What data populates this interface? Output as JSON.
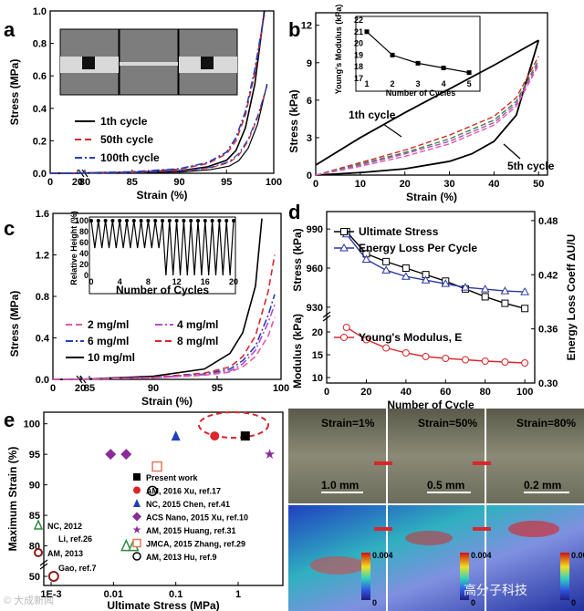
{
  "watermark_left": "© 大成新闻",
  "watermark_right": "高分子科技",
  "chart_data": [
    {
      "panel": "a",
      "type": "line",
      "xlabel": "Strain (%)",
      "ylabel": "Stress (MPa)",
      "xticks": [
        "0",
        "20",
        "80",
        "85",
        "90",
        "95",
        "100"
      ],
      "yticks": [
        "0.0",
        "0.2",
        "0.4",
        "0.6",
        "0.8",
        "1.0"
      ],
      "ylim": [
        0,
        1.0
      ],
      "series": [
        {
          "name": "1th cycle",
          "color": "#000000",
          "dash": "solid",
          "x": [
            0,
            20,
            80,
            85,
            90,
            93,
            95,
            96,
            97,
            98,
            99
          ],
          "y": [
            0,
            0,
            0.002,
            0.005,
            0.015,
            0.04,
            0.08,
            0.14,
            0.28,
            0.55,
            1.0
          ]
        },
        {
          "name": "50th cycle",
          "color": "#d9262b",
          "dash": "dashed",
          "x": [
            0,
            20,
            80,
            85,
            90,
            93,
            95,
            96,
            97,
            98,
            99
          ],
          "y": [
            0,
            0,
            0.003,
            0.008,
            0.025,
            0.06,
            0.12,
            0.2,
            0.36,
            0.62,
            0.98
          ]
        },
        {
          "name": "100th cycle",
          "color": "#1f3fbf",
          "dash": "dashdot",
          "x": [
            0,
            20,
            80,
            85,
            90,
            93,
            95,
            96,
            97,
            98,
            99
          ],
          "y": [
            0,
            0,
            0.003,
            0.009,
            0.028,
            0.066,
            0.13,
            0.22,
            0.38,
            0.64,
            0.98
          ]
        }
      ]
    },
    {
      "panel": "b",
      "type": "line",
      "xlabel": "Strain (%)",
      "ylabel": "Stress (kPa)",
      "xticks": [
        "0",
        "10",
        "20",
        "30",
        "40",
        "50"
      ],
      "yticks": [
        "0",
        "3",
        "6",
        "9",
        "12"
      ],
      "annotations": [
        "1th cycle",
        "5th cycle"
      ],
      "inset": {
        "type": "line",
        "xlabel": "Number of Cycles",
        "ylabel": "Young's Modulus (kPa)",
        "x": [
          1,
          2,
          3,
          4,
          5
        ],
        "y": [
          21.0,
          19.0,
          18.3,
          17.9,
          17.5
        ],
        "xticks": [
          "1",
          "2",
          "3",
          "4",
          "5"
        ],
        "yticks": [
          "17",
          "18",
          "19",
          "20",
          "21",
          "22"
        ]
      },
      "series": [
        {
          "name": "1th cycle loading",
          "color": "#000000",
          "x": [
            0,
            10,
            20,
            30,
            40,
            50
          ],
          "y": [
            0.8,
            3.0,
            5.0,
            6.9,
            8.8,
            10.8
          ]
        },
        {
          "name": "1th cycle unloading",
          "color": "#000000",
          "x": [
            50,
            45,
            40,
            35,
            30,
            20,
            10,
            0
          ],
          "y": [
            10.8,
            4.8,
            2.7,
            1.7,
            1.1,
            0.5,
            0.2,
            0
          ]
        },
        {
          "name": "cycle 2",
          "color": "#d9262b",
          "x": [
            0,
            10,
            20,
            30,
            40,
            45,
            50
          ],
          "y": [
            0,
            1.0,
            2.0,
            3.2,
            4.7,
            6.2,
            9.5
          ]
        },
        {
          "name": "cycle 3",
          "color": "#2e8b3d",
          "x": [
            0,
            10,
            20,
            30,
            40,
            45,
            50
          ],
          "y": [
            0,
            0.9,
            1.8,
            2.9,
            4.4,
            5.9,
            9.2
          ]
        },
        {
          "name": "cycle 4",
          "color": "#b44bc8",
          "x": [
            0,
            10,
            20,
            30,
            40,
            45,
            50
          ],
          "y": [
            0,
            0.8,
            1.7,
            2.7,
            4.2,
            5.7,
            9.0
          ]
        },
        {
          "name": "5th cycle",
          "color": "#e05aa8",
          "x": [
            0,
            10,
            20,
            30,
            40,
            45,
            50
          ],
          "y": [
            0,
            0.7,
            1.5,
            2.5,
            4.0,
            5.5,
            8.8
          ]
        }
      ]
    },
    {
      "panel": "c",
      "type": "line",
      "xlabel": "Strain (%)",
      "ylabel": "Stress (MPa)",
      "xticks": [
        "0",
        "20",
        "85",
        "90",
        "95",
        "100"
      ],
      "yticks": [
        "0.0",
        "0.4",
        "0.8",
        "1.2",
        "1.6"
      ],
      "legend": [
        "2 mg/ml",
        "4 mg/ml",
        "6 mg/ml",
        "8 mg/ml",
        "10 mg/ml"
      ],
      "inset": {
        "type": "line",
        "xlabel": "Number of Cycles",
        "ylabel": "Relative Height (%)",
        "xticks": [
          "0",
          "4",
          "8",
          "12",
          "16",
          "20"
        ],
        "yticks": [
          "0",
          "20",
          "40",
          "60",
          "80",
          "100"
        ],
        "cycles": 20,
        "drop_after": 10,
        "low_first": 50,
        "low_second": 0,
        "high": 100
      },
      "series": [
        {
          "name": "10 mg/ml",
          "color": "#000000",
          "x": [
            0,
            20,
            85,
            90,
            94,
            96,
            97,
            98,
            98.5
          ],
          "y": [
            0,
            0,
            0.005,
            0.03,
            0.1,
            0.25,
            0.45,
            0.9,
            1.55
          ]
        },
        {
          "name": "8 mg/ml",
          "color": "#d9262b",
          "x": [
            0,
            20,
            85,
            90,
            94,
            96,
            97,
            98,
            99,
            99.5
          ],
          "y": [
            0,
            0,
            0.004,
            0.02,
            0.06,
            0.12,
            0.22,
            0.42,
            0.85,
            1.2
          ]
        },
        {
          "name": "6 mg/ml",
          "color": "#1f3fbf",
          "x": [
            0,
            20,
            85,
            90,
            94,
            96,
            97,
            98,
            99,
            99.5
          ],
          "y": [
            0,
            0,
            0.004,
            0.018,
            0.05,
            0.1,
            0.18,
            0.32,
            0.62,
            0.82
          ]
        },
        {
          "name": "4 mg/ml",
          "color": "#b44bc8",
          "x": [
            0,
            20,
            85,
            90,
            94,
            96,
            97,
            98,
            99,
            99.5
          ],
          "y": [
            0,
            0,
            0.004,
            0.016,
            0.045,
            0.08,
            0.15,
            0.28,
            0.55,
            0.72
          ]
        },
        {
          "name": "2 mg/ml",
          "color": "#e05aa8",
          "x": [
            0,
            20,
            85,
            90,
            94,
            96,
            97,
            98,
            99,
            99.5
          ],
          "y": [
            0,
            0,
            0.003,
            0.014,
            0.04,
            0.07,
            0.12,
            0.22,
            0.42,
            0.6
          ]
        }
      ]
    },
    {
      "panel": "d",
      "type": "line",
      "xlabel": "Number of Cycle",
      "ylabel_top": "Stress (kPa)",
      "ylabel_bottom": "Modulus (kPa)",
      "ylabel_right": "Energy Loss Coeff ΔU/U",
      "xticks": [
        "0",
        "20",
        "40",
        "60",
        "80",
        "100"
      ],
      "yticks_top": [
        "930",
        "960",
        "990"
      ],
      "yticks_bottom": [
        "10",
        "15",
        "20"
      ],
      "yticks_right": [
        "0.30",
        "0.36",
        "0.42",
        "0.48"
      ],
      "series": [
        {
          "name": "Ultimate Stress",
          "color": "#000000",
          "marker": "square",
          "x": [
            10,
            20,
            30,
            40,
            50,
            60,
            70,
            80,
            90,
            100
          ],
          "y": [
            988,
            971,
            965,
            960,
            955,
            950,
            944,
            938,
            933,
            929
          ]
        },
        {
          "name": "Energy Loss Per Cycle",
          "color": "#2a37a8",
          "marker": "triangle",
          "x": [
            10,
            20,
            30,
            40,
            50,
            60,
            70,
            80,
            90,
            100
          ],
          "y": [
            0.465,
            0.437,
            0.425,
            0.418,
            0.414,
            0.41,
            0.406,
            0.404,
            0.402,
            0.401
          ]
        },
        {
          "name": "Young's Modulus, E",
          "color": "#d9262b",
          "marker": "circle",
          "x": [
            10,
            20,
            30,
            40,
            50,
            60,
            70,
            80,
            90,
            100
          ],
          "y": [
            21.0,
            18.3,
            16.5,
            15.4,
            14.6,
            14.2,
            13.9,
            13.6,
            13.4,
            13.2
          ]
        }
      ]
    },
    {
      "panel": "e",
      "type": "scatter",
      "xlabel": "Ultimate Stress (MPa)",
      "ylabel": "Maximum Strain (%)",
      "xscale": "log",
      "xticks": [
        "1E-3",
        "0.01",
        "0.1",
        "1"
      ],
      "yticks": [
        "50",
        "80",
        "85",
        "90",
        "95",
        "100"
      ],
      "points": [
        {
          "name": "Present work",
          "x": 1.3,
          "y": 98
        },
        {
          "name": "AM, 2016 Xu, ref.17",
          "x": 0.42,
          "y": 98
        },
        {
          "name": "NC, 2015 Chen, ref.41",
          "x": 0.1,
          "y": 98
        },
        {
          "name": "ACS Nano, 2015 Xu, ref.10",
          "x": 0.009,
          "y": 95
        },
        {
          "name": "ACS Nano, 2015 Xu, ref.10",
          "x": 0.016,
          "y": 95
        },
        {
          "name": "AM, 2015 Huang, ref.31",
          "x": 3.2,
          "y": 95
        },
        {
          "name": "JMCA, 2015 Zhang, ref.29",
          "x": 0.05,
          "y": 93
        },
        {
          "name": "AM, 2013 Hu, ref.9",
          "x": 0.042,
          "y": 89
        },
        {
          "name": "NC, 2012 Li, ref.26",
          "x": 0.016,
          "y": 80
        },
        {
          "name": "NC, 2012 Li, ref.26",
          "x": 0.021,
          "y": 80
        },
        {
          "name": "AM, 2013 Gao, ref.7",
          "x": 0.0011,
          "y": 50
        }
      ],
      "legend": [
        "Present work",
        "AM, 2016 Xu, ref.17",
        "NC, 2015 Chen, ref.41",
        "ACS Nano, 2015 Xu, ref.10",
        "AM, 2015 Huang, ref.31",
        "JMCA, 2015 Zhang, ref.29",
        "AM, 2013 Hu, ref.9"
      ],
      "side_labels": [
        "NC, 2012",
        "Li, ref.26",
        "AM, 2013",
        "Gao, ref.7"
      ]
    },
    {
      "panel": "f",
      "type": "image",
      "labels": [
        "Strain=1%",
        "Strain=50%",
        "Strain=80%"
      ],
      "scalebars": [
        "1.0 mm",
        "0.5 mm",
        "0.2 mm"
      ],
      "colorbar": [
        "0.004",
        "0"
      ]
    }
  ]
}
